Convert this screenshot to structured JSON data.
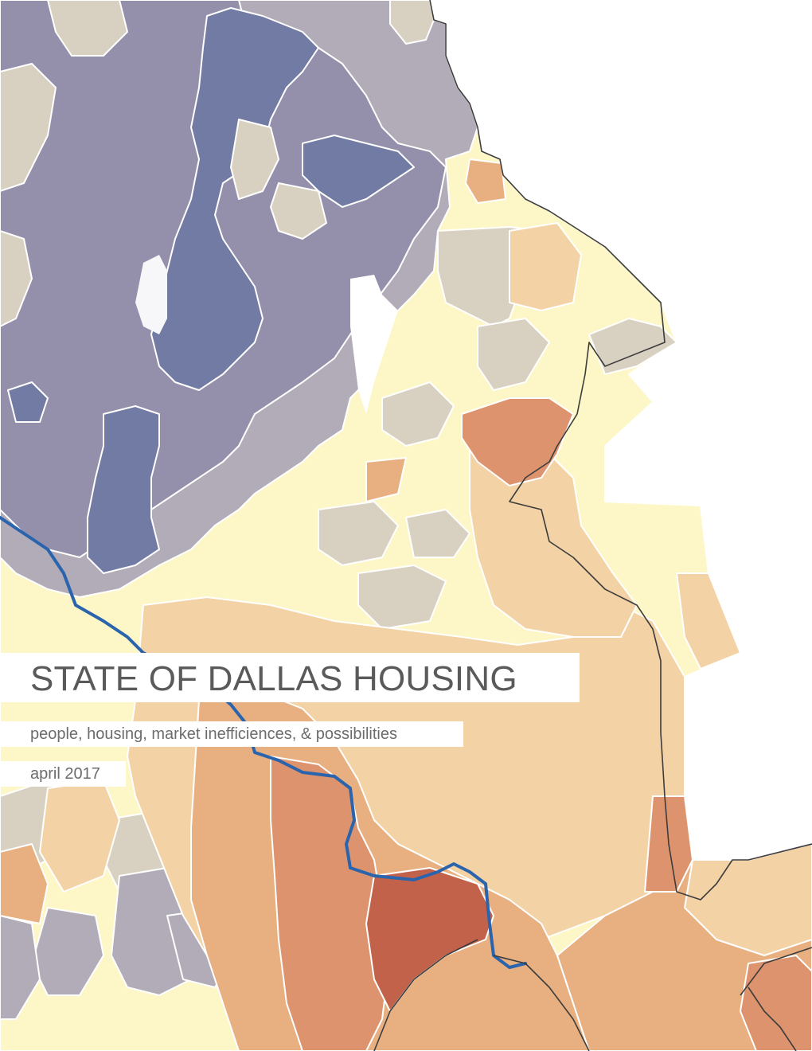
{
  "cover": {
    "title": "STATE OF DALLAS HOUSING",
    "subtitle": "people, housing, market inefficiences, & possibilities",
    "date": "april 2017"
  },
  "map": {
    "palette": {
      "deep_blue": "#717ba3",
      "slate": "#948fab",
      "mauve_grey": "#b1acb7",
      "tan_grey": "#d8d1c1",
      "pale_yellow": "#fdf7c8",
      "peach": "#f3d3a6",
      "light_orange": "#e8b081",
      "orange": "#dd946e",
      "rust": "#c3624a",
      "river": "#2a64ad",
      "boundary": "#3c3c3c",
      "lake": "#ffffff"
    }
  }
}
